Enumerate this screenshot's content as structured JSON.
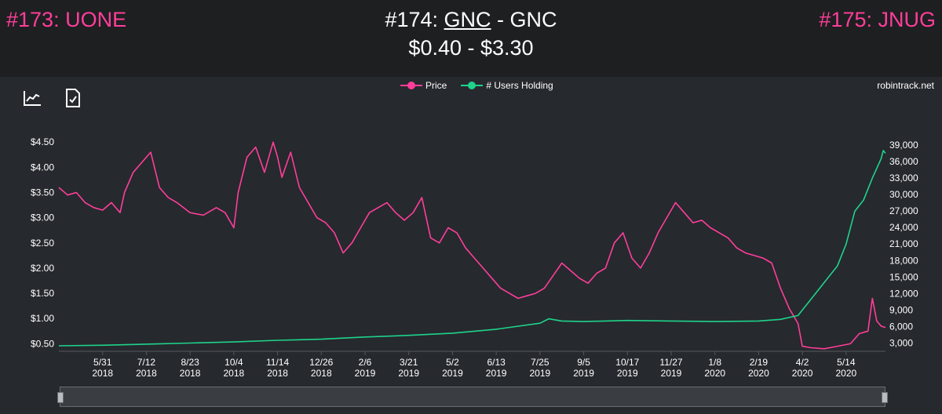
{
  "header": {
    "prev_link": "#173: UONE",
    "title_rank": "#174: ",
    "title_symbol": "GNC",
    "title_name": " - GNC",
    "range": "$0.40 - $3.30",
    "next_link": "#175: JNUG"
  },
  "legend": {
    "price": "Price",
    "users": "# Users Holding"
  },
  "source": "robintrack.net",
  "icons": [
    "chart-line-icon",
    "save-image-icon"
  ],
  "colors": {
    "price": "#ff3e9a",
    "users": "#1fd38a",
    "background": "#26292e"
  },
  "chart_data": {
    "type": "line",
    "x_ticks": [
      {
        "label": "5/31",
        "year": "2018",
        "index": 1
      },
      {
        "label": "7/12",
        "year": "2018",
        "index": 2
      },
      {
        "label": "8/23",
        "year": "2018",
        "index": 3
      },
      {
        "label": "10/4",
        "year": "2018",
        "index": 4
      },
      {
        "label": "11/14",
        "year": "2018",
        "index": 5
      },
      {
        "label": "12/26",
        "year": "2018",
        "index": 6
      },
      {
        "label": "2/6",
        "year": "2019",
        "index": 7
      },
      {
        "label": "3/21",
        "year": "2019",
        "index": 8
      },
      {
        "label": "5/2",
        "year": "2019",
        "index": 9
      },
      {
        "label": "6/13",
        "year": "2019",
        "index": 10
      },
      {
        "label": "7/25",
        "year": "2019",
        "index": 11
      },
      {
        "label": "9/5",
        "year": "2019",
        "index": 12
      },
      {
        "label": "10/17",
        "year": "2019",
        "index": 13
      },
      {
        "label": "11/27",
        "year": "2019",
        "index": 14
      },
      {
        "label": "1/8",
        "year": "2020",
        "index": 15
      },
      {
        "label": "2/19",
        "year": "2020",
        "index": 16
      },
      {
        "label": "4/2",
        "year": "2020",
        "index": 17
      },
      {
        "label": "5/14",
        "year": "2020",
        "index": 18
      }
    ],
    "x_range": [
      0,
      18.9
    ],
    "y_left": {
      "ticks": [
        "$0.50",
        "$1.00",
        "$1.50",
        "$2.00",
        "$2.50",
        "$3.00",
        "$3.50",
        "$4.00",
        "$4.50"
      ],
      "tick_values": [
        0.5,
        1.0,
        1.5,
        2.0,
        2.5,
        3.0,
        3.5,
        4.0,
        4.5
      ],
      "range": [
        0.35,
        4.55
      ]
    },
    "y_right": {
      "ticks": [
        "3,000",
        "6,000",
        "9,000",
        "12,000",
        "15,000",
        "18,000",
        "21,000",
        "24,000",
        "27,000",
        "30,000",
        "33,000",
        "36,000",
        "39,000"
      ],
      "tick_values": [
        3000,
        6000,
        9000,
        12000,
        15000,
        18000,
        21000,
        24000,
        27000,
        30000,
        33000,
        36000,
        39000
      ],
      "range": [
        1500,
        40000
      ]
    },
    "series": [
      {
        "name": "Price",
        "axis": "left",
        "points": [
          [
            0.0,
            3.6
          ],
          [
            0.2,
            3.45
          ],
          [
            0.4,
            3.5
          ],
          [
            0.6,
            3.3
          ],
          [
            0.8,
            3.2
          ],
          [
            1.0,
            3.15
          ],
          [
            1.2,
            3.3
          ],
          [
            1.4,
            3.1
          ],
          [
            1.5,
            3.5
          ],
          [
            1.7,
            3.9
          ],
          [
            1.9,
            4.1
          ],
          [
            2.1,
            4.3
          ],
          [
            2.3,
            3.6
          ],
          [
            2.5,
            3.4
          ],
          [
            2.7,
            3.3
          ],
          [
            3.0,
            3.1
          ],
          [
            3.3,
            3.05
          ],
          [
            3.6,
            3.2
          ],
          [
            3.8,
            3.1
          ],
          [
            4.0,
            2.8
          ],
          [
            4.1,
            3.5
          ],
          [
            4.3,
            4.2
          ],
          [
            4.5,
            4.4
          ],
          [
            4.7,
            3.9
          ],
          [
            4.9,
            4.5
          ],
          [
            5.0,
            4.2
          ],
          [
            5.1,
            3.8
          ],
          [
            5.3,
            4.3
          ],
          [
            5.5,
            3.6
          ],
          [
            5.7,
            3.3
          ],
          [
            5.9,
            3.0
          ],
          [
            6.1,
            2.9
          ],
          [
            6.3,
            2.7
          ],
          [
            6.5,
            2.3
          ],
          [
            6.7,
            2.5
          ],
          [
            6.9,
            2.8
          ],
          [
            7.1,
            3.1
          ],
          [
            7.3,
            3.2
          ],
          [
            7.5,
            3.3
          ],
          [
            7.7,
            3.1
          ],
          [
            7.9,
            2.95
          ],
          [
            8.1,
            3.1
          ],
          [
            8.3,
            3.4
          ],
          [
            8.5,
            2.6
          ],
          [
            8.7,
            2.5
          ],
          [
            8.9,
            2.8
          ],
          [
            9.1,
            2.7
          ],
          [
            9.3,
            2.4
          ],
          [
            9.5,
            2.2
          ],
          [
            9.7,
            2.0
          ],
          [
            9.9,
            1.8
          ],
          [
            10.1,
            1.6
          ],
          [
            10.3,
            1.5
          ],
          [
            10.5,
            1.4
          ],
          [
            10.7,
            1.45
          ],
          [
            10.9,
            1.5
          ],
          [
            11.1,
            1.6
          ],
          [
            11.3,
            1.85
          ],
          [
            11.5,
            2.1
          ],
          [
            11.7,
            1.95
          ],
          [
            11.9,
            1.8
          ],
          [
            12.1,
            1.7
          ],
          [
            12.3,
            1.9
          ],
          [
            12.5,
            2.0
          ],
          [
            12.7,
            2.5
          ],
          [
            12.9,
            2.7
          ],
          [
            13.1,
            2.2
          ],
          [
            13.3,
            2.0
          ],
          [
            13.5,
            2.3
          ],
          [
            13.7,
            2.7
          ],
          [
            13.9,
            3.0
          ],
          [
            14.1,
            3.3
          ],
          [
            14.3,
            3.1
          ],
          [
            14.5,
            2.9
          ],
          [
            14.7,
            2.95
          ],
          [
            14.9,
            2.8
          ],
          [
            15.1,
            2.7
          ],
          [
            15.3,
            2.6
          ],
          [
            15.5,
            2.4
          ],
          [
            15.7,
            2.3
          ],
          [
            15.9,
            2.25
          ],
          [
            16.1,
            2.2
          ],
          [
            16.3,
            2.1
          ],
          [
            16.5,
            1.6
          ],
          [
            16.7,
            1.2
          ],
          [
            16.9,
            0.9
          ],
          [
            17.0,
            0.45
          ],
          [
            17.2,
            0.42
          ],
          [
            17.5,
            0.4
          ],
          [
            17.8,
            0.45
          ],
          [
            18.1,
            0.5
          ],
          [
            18.3,
            0.7
          ],
          [
            18.5,
            0.75
          ],
          [
            18.6,
            1.4
          ],
          [
            18.7,
            0.95
          ],
          [
            18.8,
            0.85
          ],
          [
            18.9,
            0.82
          ]
        ]
      },
      {
        "name": "# Users Holding",
        "axis": "right",
        "points": [
          [
            0.0,
            2500
          ],
          [
            1.0,
            2600
          ],
          [
            2.0,
            2800
          ],
          [
            3.0,
            3000
          ],
          [
            4.0,
            3200
          ],
          [
            5.0,
            3500
          ],
          [
            6.0,
            3700
          ],
          [
            7.0,
            4100
          ],
          [
            8.0,
            4400
          ],
          [
            9.0,
            4800
          ],
          [
            10.0,
            5500
          ],
          [
            11.0,
            6600
          ],
          [
            11.2,
            7400
          ],
          [
            11.5,
            7000
          ],
          [
            12.0,
            6900
          ],
          [
            13.0,
            7100
          ],
          [
            14.0,
            7000
          ],
          [
            15.0,
            6900
          ],
          [
            16.0,
            7000
          ],
          [
            16.5,
            7300
          ],
          [
            16.9,
            8000
          ],
          [
            17.0,
            9000
          ],
          [
            17.2,
            11000
          ],
          [
            17.5,
            14000
          ],
          [
            17.8,
            17000
          ],
          [
            18.0,
            21000
          ],
          [
            18.2,
            27000
          ],
          [
            18.4,
            29000
          ],
          [
            18.6,
            33000
          ],
          [
            18.8,
            36500
          ],
          [
            18.85,
            38000
          ],
          [
            18.9,
            37500
          ]
        ]
      }
    ]
  }
}
